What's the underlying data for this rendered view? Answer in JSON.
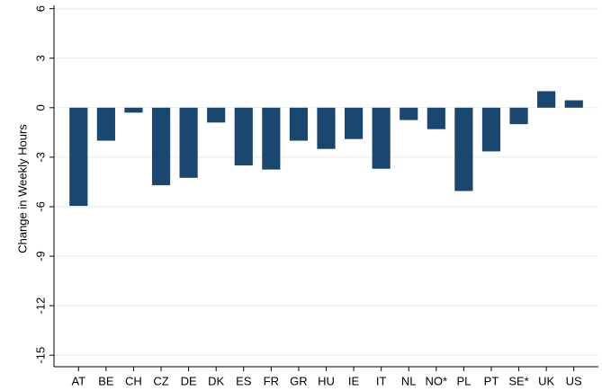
{
  "chart_data": {
    "type": "bar",
    "y_label": "Change in Weekly Hours",
    "categories": [
      "AT",
      "BE",
      "CH",
      "CZ",
      "DE",
      "DK",
      "ES",
      "FR",
      "GR",
      "HU",
      "IE",
      "IT",
      "NL",
      "NO*",
      "PL",
      "PT",
      "SE*",
      "UK",
      "US"
    ],
    "values": [
      -5.95,
      -2.0,
      -0.3,
      -4.7,
      -4.25,
      -0.9,
      -3.5,
      -3.75,
      -2.0,
      -2.5,
      -1.9,
      -3.7,
      -0.75,
      -1.3,
      -5.05,
      -2.65,
      -1.0,
      1.0,
      0.45
    ],
    "color": "#1a476f",
    "ylim": [
      -15.7,
      6.2
    ],
    "yticks": [
      6,
      3,
      0,
      -3,
      -6,
      -9,
      -12,
      -15
    ],
    "grid": true
  }
}
